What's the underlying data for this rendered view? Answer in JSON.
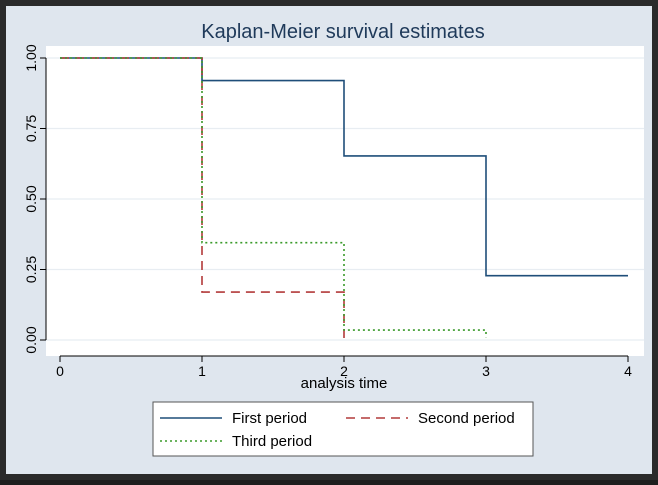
{
  "colors": {
    "frame": "#2a2a2a",
    "outer_bg": "#dfe6ee",
    "plot_bg": "#ffffff",
    "grid": "#e8edf2",
    "axis": "#000000",
    "title": "#1f3a5a",
    "legend_bg": "#ffffff"
  },
  "chart_data": {
    "type": "line",
    "subtype": "step",
    "title": "Kaplan-Meier survival estimates",
    "xlabel": "analysis time",
    "ylabel": "",
    "xlim": [
      0,
      4
    ],
    "ylim": [
      0,
      1
    ],
    "x_ticks": [
      0,
      1,
      2,
      3,
      4
    ],
    "x_tick_labels": [
      "0",
      "1",
      "2",
      "3",
      "4"
    ],
    "y_ticks": [
      0,
      0.25,
      0.5,
      0.75,
      1.0
    ],
    "y_tick_labels": [
      "0.00",
      "0.25",
      "0.50",
      "0.75",
      "1.00"
    ],
    "grid": "horizontal",
    "legend_position": "bottom",
    "series": [
      {
        "name": "First period",
        "color": "#1f4e79",
        "dash": "solid",
        "points": [
          [
            0,
            1.0
          ],
          [
            2,
            0.92
          ],
          [
            3,
            0.653
          ],
          [
            4,
            0.228
          ]
        ],
        "steps": [
          [
            0,
            1.0
          ],
          [
            1,
            1.0
          ],
          [
            1,
            0.92
          ],
          [
            2,
            0.92
          ],
          [
            2,
            0.653
          ],
          [
            3,
            0.653
          ],
          [
            3,
            0.228
          ],
          [
            4,
            0.228
          ]
        ]
      },
      {
        "name": "Second period",
        "color": "#b23a3a",
        "dash": "dashed",
        "steps": [
          [
            0,
            1.0
          ],
          [
            1,
            1.0
          ],
          [
            1,
            0.17
          ],
          [
            2,
            0.17
          ],
          [
            2,
            0.0
          ]
        ]
      },
      {
        "name": "Third period",
        "color": "#3a9a2a",
        "dash": "dotted",
        "steps": [
          [
            0,
            1.0
          ],
          [
            1,
            1.0
          ],
          [
            1,
            0.345
          ],
          [
            2,
            0.345
          ],
          [
            2,
            0.035
          ],
          [
            3,
            0.035
          ],
          [
            3,
            0.01
          ]
        ]
      }
    ]
  }
}
